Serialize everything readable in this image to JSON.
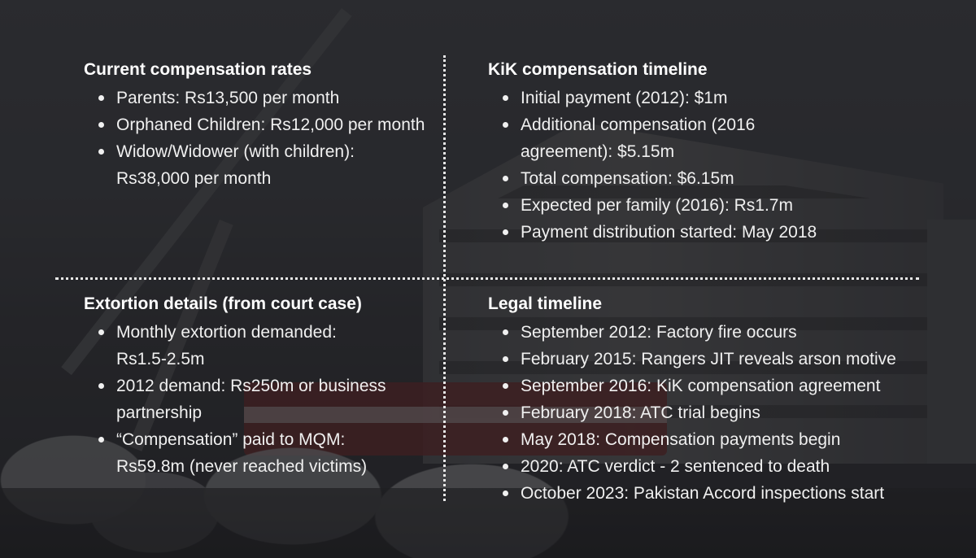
{
  "panels": {
    "current_rates": {
      "title": "Current compensation rates",
      "items": [
        "Parents: Rs13,500 per month",
        "Orphaned Children: Rs12,000 per month",
        "Widow/Widower (with children): Rs38,000 per month"
      ]
    },
    "kik_timeline": {
      "title": "KiK compensation timeline",
      "items": [
        "Initial payment (2012): $1m",
        "Additional compensation (2016 agreement): $5.15m",
        "Total compensation: $6.15m",
        "Expected per family (2016): Rs1.7m",
        "Payment distribution started: May 2018"
      ]
    },
    "extortion": {
      "title": "Extortion details (from court case)",
      "items": [
        "Monthly extortion demanded: Rs1.5-2.5m",
        "2012 demand: Rs250m or business partnership",
        "“Compensation” paid to MQM: Rs59.8m (never reached victims)"
      ]
    },
    "legal_timeline": {
      "title": "Legal timeline",
      "items": [
        "September 2012: Factory fire occurs",
        "February 2015: Rangers JIT reveals arson motive",
        "September 2016: KiK compensation agreement",
        "February 2018: ATC trial begins",
        "May 2018: Compensation payments begin",
        "2020: ATC verdict - 2 sentenced to death",
        "October 2023: Pakistan Accord inspections start"
      ]
    }
  }
}
